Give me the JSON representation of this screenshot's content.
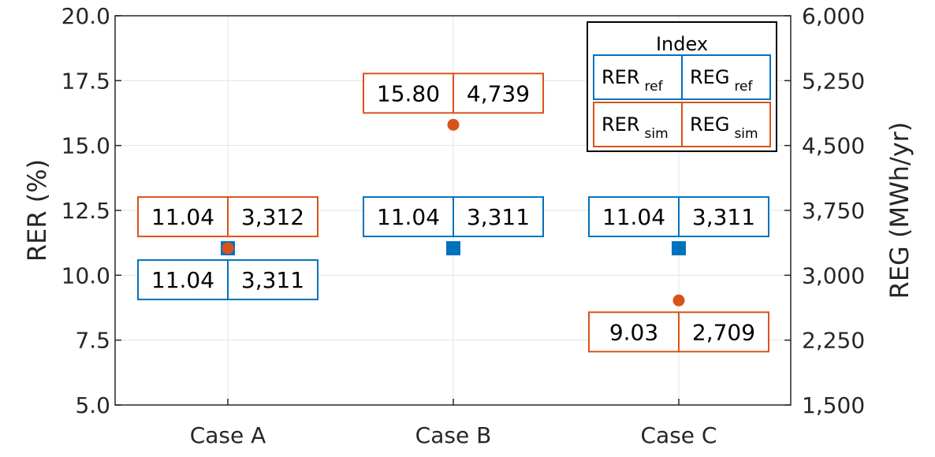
{
  "chart_data": {
    "type": "scatter",
    "categories": [
      "Case A",
      "Case B",
      "Case C"
    ],
    "y_left": {
      "label": "RER (%)",
      "lim": [
        5.0,
        20.0
      ],
      "ticks": [
        5.0,
        7.5,
        10.0,
        12.5,
        15.0,
        17.5,
        20.0
      ],
      "tick_labels": [
        "5.0",
        "7.5",
        "10.0",
        "12.5",
        "15.0",
        "17.5",
        "20.0"
      ]
    },
    "y_right": {
      "label": "REG (MWh/yr)",
      "lim": [
        1500,
        6000
      ],
      "ticks": [
        1500,
        2250,
        3000,
        3750,
        4500,
        5250,
        6000
      ],
      "tick_labels": [
        "1,500",
        "2,250",
        "3,000",
        "3,750",
        "4,500",
        "5,250",
        "6,000"
      ]
    },
    "grid": true,
    "series": [
      {
        "key": "ref",
        "marker": "square",
        "color": "#0072BD",
        "rer": [
          11.04,
          11.04,
          11.04
        ],
        "reg": [
          3311,
          3311,
          3311
        ],
        "rer_labels": [
          "11.04",
          "11.04",
          "11.04"
        ],
        "reg_labels": [
          "3,311",
          "3,311",
          "3,311"
        ],
        "label_position": [
          "below",
          "above",
          "above"
        ]
      },
      {
        "key": "sim",
        "marker": "circle",
        "color": "#D95319",
        "rer": [
          11.04,
          15.8,
          9.03
        ],
        "reg": [
          3312,
          4739,
          2709
        ],
        "rer_labels": [
          "11.04",
          "15.80",
          "9.03"
        ],
        "reg_labels": [
          "3,312",
          "4,739",
          "2,709"
        ],
        "label_position": [
          "above",
          "above",
          "below"
        ]
      }
    ],
    "legend": {
      "title": "Index",
      "placement": "top-right",
      "rows": [
        {
          "color": "#0072BD",
          "left_main": "RER",
          "left_sub": "ref",
          "right_main": "REG",
          "right_sub": "ref"
        },
        {
          "color": "#D95319",
          "left_main": "RER",
          "left_sub": "sim",
          "right_main": "REG",
          "right_sub": "sim"
        }
      ]
    }
  }
}
